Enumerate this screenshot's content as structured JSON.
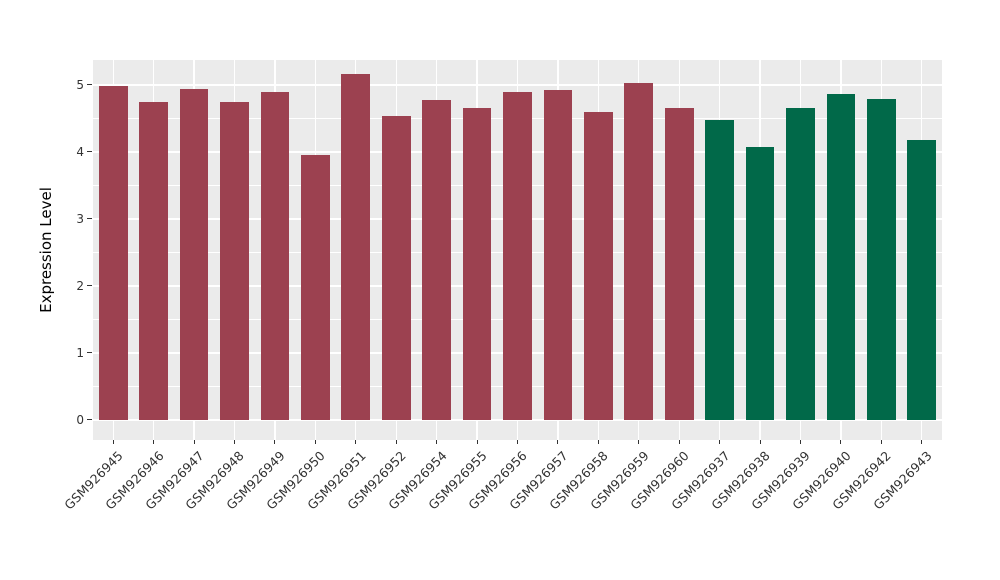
{
  "chart_data": {
    "type": "bar",
    "title": "",
    "xlabel": "",
    "ylabel": "Expression Level",
    "categories": [
      "GSM926945",
      "GSM926946",
      "GSM926947",
      "GSM926948",
      "GSM926949",
      "GSM926950",
      "GSM926951",
      "GSM926952",
      "GSM926954",
      "GSM926955",
      "GSM926956",
      "GSM926957",
      "GSM926958",
      "GSM926959",
      "GSM926960",
      "GSM926937",
      "GSM926938",
      "GSM926939",
      "GSM926940",
      "GSM926942",
      "GSM926943"
    ],
    "values": [
      4.98,
      4.74,
      4.94,
      4.74,
      4.9,
      3.95,
      5.16,
      4.53,
      4.77,
      4.65,
      4.89,
      4.93,
      4.6,
      5.02,
      4.66,
      4.48,
      4.07,
      4.66,
      4.86,
      4.79,
      4.18
    ],
    "bar_colors": [
      "#9C4150",
      "#9C4150",
      "#9C4150",
      "#9C4150",
      "#9C4150",
      "#9C4150",
      "#9C4150",
      "#9C4150",
      "#9C4150",
      "#9C4150",
      "#9C4150",
      "#9C4150",
      "#9C4150",
      "#9C4150",
      "#9C4150",
      "#016949",
      "#016949",
      "#016949",
      "#016949",
      "#016949",
      "#016949"
    ],
    "group_colors": {
      "red_group": "#9C4150",
      "green_group": "#016949"
    },
    "yticks": [
      0,
      1,
      2,
      3,
      4,
      5
    ],
    "ylim": [
      -0.3,
      5.37
    ],
    "grid": true,
    "legend": "none",
    "panel_bg": "#EBEBEB",
    "grid_color": "#FFFFFF",
    "tick_color": "#333333",
    "axis_text_color": "#333333",
    "x_label_angle": 45
  }
}
